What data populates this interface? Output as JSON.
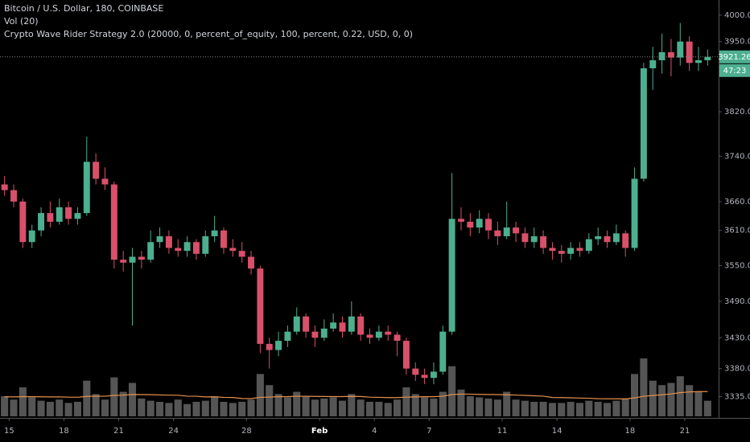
{
  "chart_data": {
    "type": "candlestick",
    "title": "Bitcoin / U.S. Dollar, 180, COINBASE",
    "indicators": [
      "Vol (20)",
      "Crypto Wave Rider Strategy 2.0 (20000, 0, percent_of_equity, 100, percent, 0.22, USD, 0, 0)"
    ],
    "log_scale": true,
    "grid": false,
    "up_color": "#4caf8f",
    "down_color": "#d9506a",
    "volume_color": "#555555",
    "ma_color": "#e8904c",
    "ylim": [
      3304,
      4029
    ],
    "yticks": [
      {
        "value": 4000,
        "label": "4000.00"
      },
      {
        "value": 3950,
        "label": "3950.00"
      },
      {
        "value": 3820,
        "label": "3820.00"
      },
      {
        "value": 3740,
        "label": "3740.00"
      },
      {
        "value": 3660,
        "label": "3660.00"
      },
      {
        "value": 3610,
        "label": "3610.00"
      },
      {
        "value": 3550,
        "label": "3550.00"
      },
      {
        "value": 3490,
        "label": "3490.00"
      },
      {
        "value": 3430,
        "label": "3430.00"
      },
      {
        "value": 3380,
        "label": "3380.00"
      },
      {
        "value": 3335,
        "label": "3335.00"
      }
    ],
    "xticks": [
      {
        "value": 1,
        "label": "15"
      },
      {
        "value": 7,
        "label": "18"
      },
      {
        "value": 13,
        "label": "21"
      },
      {
        "value": 19,
        "label": "24"
      },
      {
        "value": 27,
        "label": "28"
      },
      {
        "value": 35,
        "label": "Feb"
      },
      {
        "value": 41,
        "label": "4"
      },
      {
        "value": 47,
        "label": "7"
      },
      {
        "value": 55,
        "label": "11"
      },
      {
        "value": 61,
        "label": "14"
      },
      {
        "value": 69,
        "label": "18"
      },
      {
        "value": 75,
        "label": "21"
      }
    ],
    "last_price": {
      "value": 3921.26,
      "label": "3921.26"
    },
    "countdown": "47:23",
    "candles": [
      [
        3690,
        3705,
        3670,
        3680
      ],
      [
        3680,
        3690,
        3650,
        3660
      ],
      [
        3660,
        3665,
        3580,
        3590
      ],
      [
        3590,
        3620,
        3580,
        3610
      ],
      [
        3610,
        3650,
        3600,
        3640
      ],
      [
        3640,
        3660,
        3615,
        3625
      ],
      [
        3625,
        3665,
        3620,
        3650
      ],
      [
        3650,
        3660,
        3620,
        3630
      ],
      [
        3630,
        3650,
        3620,
        3640
      ],
      [
        3640,
        3775,
        3635,
        3730
      ],
      [
        3730,
        3745,
        3690,
        3700
      ],
      [
        3700,
        3720,
        3680,
        3690
      ],
      [
        3690,
        3695,
        3545,
        3560
      ],
      [
        3560,
        3575,
        3540,
        3555
      ],
      [
        3555,
        3580,
        3450,
        3565
      ],
      [
        3565,
        3575,
        3545,
        3560
      ],
      [
        3560,
        3610,
        3555,
        3590
      ],
      [
        3590,
        3615,
        3580,
        3600
      ],
      [
        3600,
        3610,
        3570,
        3580
      ],
      [
        3580,
        3595,
        3565,
        3575
      ],
      [
        3575,
        3600,
        3565,
        3590
      ],
      [
        3590,
        3595,
        3560,
        3570
      ],
      [
        3570,
        3610,
        3565,
        3600
      ],
      [
        3600,
        3635,
        3590,
        3610
      ],
      [
        3610,
        3615,
        3570,
        3580
      ],
      [
        3580,
        3595,
        3565,
        3575
      ],
      [
        3575,
        3590,
        3555,
        3565
      ],
      [
        3565,
        3575,
        3535,
        3545
      ],
      [
        3545,
        3550,
        3405,
        3420
      ],
      [
        3420,
        3430,
        3380,
        3410
      ],
      [
        3410,
        3440,
        3400,
        3425
      ],
      [
        3425,
        3450,
        3415,
        3440
      ],
      [
        3440,
        3480,
        3435,
        3465
      ],
      [
        3465,
        3470,
        3430,
        3440
      ],
      [
        3440,
        3450,
        3415,
        3430
      ],
      [
        3430,
        3460,
        3425,
        3445
      ],
      [
        3445,
        3470,
        3440,
        3455
      ],
      [
        3455,
        3465,
        3430,
        3440
      ],
      [
        3440,
        3490,
        3435,
        3465
      ],
      [
        3465,
        3470,
        3425,
        3435
      ],
      [
        3435,
        3445,
        3420,
        3430
      ],
      [
        3430,
        3450,
        3425,
        3440
      ],
      [
        3440,
        3450,
        3425,
        3435
      ],
      [
        3435,
        3440,
        3400,
        3425
      ],
      [
        3425,
        3430,
        3370,
        3380
      ],
      [
        3380,
        3390,
        3360,
        3370
      ],
      [
        3370,
        3380,
        3355,
        3365
      ],
      [
        3365,
        3390,
        3355,
        3375
      ],
      [
        3375,
        3450,
        3370,
        3440
      ],
      [
        3440,
        3710,
        3435,
        3630
      ],
      [
        3630,
        3650,
        3610,
        3625
      ],
      [
        3625,
        3640,
        3600,
        3615
      ],
      [
        3615,
        3645,
        3605,
        3630
      ],
      [
        3630,
        3640,
        3595,
        3610
      ],
      [
        3610,
        3625,
        3585,
        3600
      ],
      [
        3600,
        3660,
        3595,
        3615
      ],
      [
        3615,
        3625,
        3590,
        3605
      ],
      [
        3605,
        3615,
        3580,
        3590
      ],
      [
        3590,
        3615,
        3580,
        3600
      ],
      [
        3600,
        3610,
        3570,
        3580
      ],
      [
        3580,
        3590,
        3560,
        3575
      ],
      [
        3575,
        3585,
        3555,
        3570
      ],
      [
        3570,
        3590,
        3560,
        3580
      ],
      [
        3580,
        3590,
        3565,
        3575
      ],
      [
        3575,
        3605,
        3570,
        3595
      ],
      [
        3595,
        3615,
        3585,
        3600
      ],
      [
        3600,
        3610,
        3580,
        3590
      ],
      [
        3590,
        3620,
        3585,
        3605
      ],
      [
        3605,
        3610,
        3565,
        3580
      ],
      [
        3580,
        3720,
        3575,
        3700
      ],
      [
        3700,
        3910,
        3695,
        3900
      ],
      [
        3900,
        3940,
        3860,
        3915
      ],
      [
        3915,
        3965,
        3890,
        3930
      ],
      [
        3930,
        3955,
        3885,
        3920
      ],
      [
        3920,
        3985,
        3905,
        3950
      ],
      [
        3950,
        3960,
        3895,
        3910
      ],
      [
        3910,
        3940,
        3895,
        3915
      ],
      [
        3915,
        3935,
        3905,
        3921.26
      ]
    ],
    "volume": [
      1800,
      1500,
      2600,
      1700,
      1400,
      1300,
      1500,
      1200,
      1300,
      3200,
      2000,
      1500,
      3500,
      2200,
      3000,
      1600,
      1400,
      1300,
      1200,
      1500,
      1100,
      1300,
      1400,
      1800,
      1300,
      1200,
      1300,
      1500,
      3800,
      2800,
      2000,
      1700,
      2200,
      1800,
      1500,
      1600,
      1700,
      1400,
      2000,
      1500,
      1300,
      1300,
      1200,
      1500,
      2600,
      2000,
      1700,
      1600,
      2200,
      4500,
      2400,
      1800,
      1700,
      1600,
      1500,
      2200,
      1500,
      1400,
      1300,
      1300,
      1200,
      1200,
      1300,
      1200,
      1400,
      1300,
      1200,
      1400,
      1600,
      3800,
      5200,
      3200,
      2800,
      3000,
      3600,
      2800,
      2200,
      1400
    ],
    "volume_ma": [
      1750,
      1740,
      1760,
      1760,
      1750,
      1740,
      1740,
      1720,
      1710,
      1790,
      1810,
      1800,
      1880,
      1900,
      1960,
      1950,
      1940,
      1920,
      1900,
      1890,
      1810,
      1800,
      1740,
      1750,
      1700,
      1690,
      1600,
      1590,
      1700,
      1730,
      1760,
      1770,
      1800,
      1800,
      1790,
      1780,
      1770,
      1770,
      1790,
      1780,
      1720,
      1700,
      1680,
      1680,
      1720,
      1740,
      1760,
      1760,
      1800,
      1950,
      1990,
      1990,
      1970,
      1960,
      1950,
      1930,
      1910,
      1880,
      1840,
      1810,
      1690,
      1680,
      1660,
      1640,
      1620,
      1580,
      1570,
      1570,
      1560,
      1650,
      1800,
      1870,
      1930,
      2010,
      2120,
      2190,
      2220,
      2220
    ]
  }
}
